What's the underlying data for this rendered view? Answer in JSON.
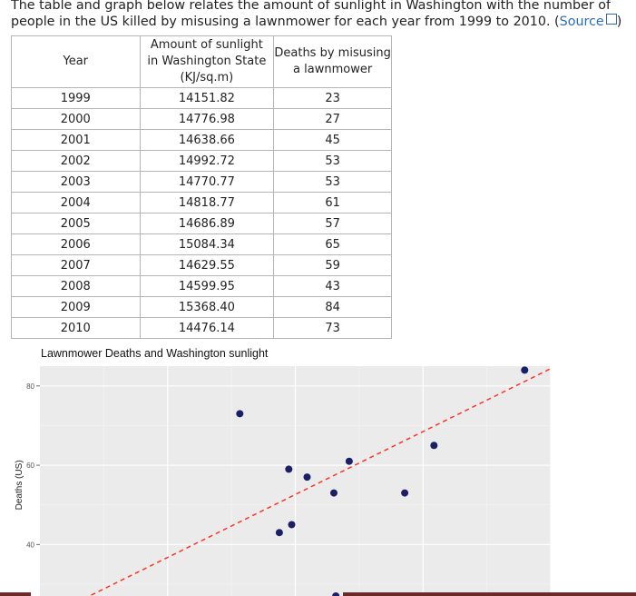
{
  "intro": {
    "text": "The table and graph below relates the amount of sunlight in Washington with the number of people in the US killed by misusing a lawnmower for each year from 1999 to 2010. (",
    "source_label": "Source",
    "close": ")"
  },
  "table": {
    "headers": [
      "Year",
      "Amount of sunlight in Washington State (KJ/sq.m)",
      "Deaths by misusing a lawnmower"
    ],
    "header_lines": [
      [
        "Year"
      ],
      [
        "Amount of sunlight",
        "in Washington State",
        "(KJ/sq.m)"
      ],
      [
        "Deaths by misusing",
        "a lawnmower"
      ]
    ],
    "rows": [
      [
        "1999",
        "14151.82",
        "23"
      ],
      [
        "2000",
        "14776.98",
        "27"
      ],
      [
        "2001",
        "14638.66",
        "45"
      ],
      [
        "2002",
        "14992.72",
        "53"
      ],
      [
        "2003",
        "14770.77",
        "53"
      ],
      [
        "2004",
        "14818.77",
        "61"
      ],
      [
        "2005",
        "14686.89",
        "57"
      ],
      [
        "2006",
        "15084.34",
        "65"
      ],
      [
        "2007",
        "14629.55",
        "59"
      ],
      [
        "2008",
        "14599.95",
        "43"
      ],
      [
        "2009",
        "15368.40",
        "84"
      ],
      [
        "2010",
        "14476.14",
        "73"
      ]
    ]
  },
  "chart_data": {
    "type": "scatter",
    "title": "Lawnmower Deaths and Washington sunlight",
    "ylabel": "Deaths (US)",
    "xlim": [
      13850,
      15450
    ],
    "ylim": [
      27,
      85
    ],
    "yticks": [
      40,
      60,
      80
    ],
    "grid": true,
    "points": [
      {
        "x": 14476.14,
        "y": 73
      },
      {
        "x": 14599.95,
        "y": 43
      },
      {
        "x": 14629.55,
        "y": 59
      },
      {
        "x": 14638.66,
        "y": 45
      },
      {
        "x": 14686.89,
        "y": 57
      },
      {
        "x": 14770.77,
        "y": 53
      },
      {
        "x": 14776.98,
        "y": 27
      },
      {
        "x": 14818.77,
        "y": 61
      },
      {
        "x": 14992.72,
        "y": 53
      },
      {
        "x": 15084.34,
        "y": 65
      },
      {
        "x": 15368.4,
        "y": 84
      }
    ],
    "trendline": {
      "style": "dashed",
      "color": "#ff2a1a",
      "slope": 0.0397,
      "intercept": -529.0
    },
    "point_color": "#1a1f66",
    "panel_color": "#ebebeb"
  }
}
